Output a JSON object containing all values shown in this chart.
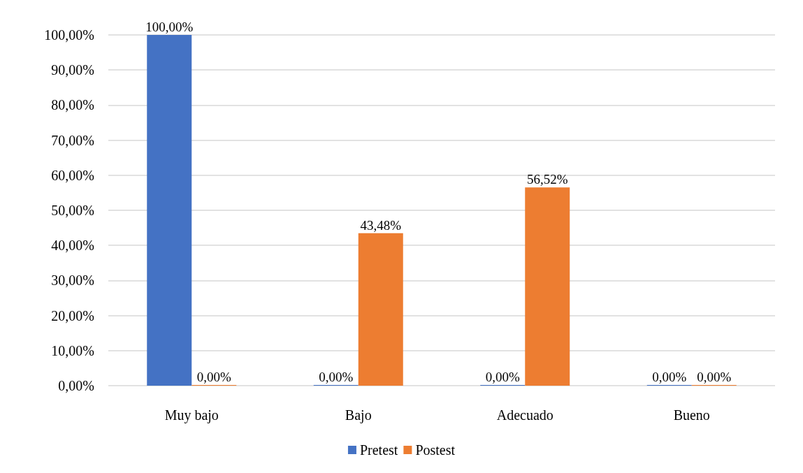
{
  "chart_data": {
    "type": "bar",
    "categories": [
      "Muy bajo",
      "Bajo",
      "Adecuado",
      "Bueno"
    ],
    "series": [
      {
        "name": "Pretest",
        "color": "#4472c4",
        "values": [
          100,
          0,
          0,
          0
        ],
        "value_labels": [
          "100,00%",
          "0,00%",
          "0,00%",
          "0,00%"
        ]
      },
      {
        "name": "Postest",
        "color": "#ed7d31",
        "values": [
          0,
          43.48,
          56.52,
          0
        ],
        "value_labels": [
          "0,00%",
          "43,48%",
          "56,52%",
          "0,00%"
        ]
      }
    ],
    "ylim": [
      0,
      100
    ],
    "yticks": [
      {
        "value": 0,
        "label": "0,00%"
      },
      {
        "value": 10,
        "label": "10,00%"
      },
      {
        "value": 20,
        "label": "20,00%"
      },
      {
        "value": 30,
        "label": "30,00%"
      },
      {
        "value": 40,
        "label": "40,00%"
      },
      {
        "value": 50,
        "label": "50,00%"
      },
      {
        "value": 60,
        "label": "60,00%"
      },
      {
        "value": 70,
        "label": "70,00%"
      },
      {
        "value": 80,
        "label": "80,00%"
      },
      {
        "value": 90,
        "label": "90,00%"
      },
      {
        "value": 100,
        "label": "100,00%"
      }
    ],
    "grid": "y",
    "legend": "bottom"
  }
}
